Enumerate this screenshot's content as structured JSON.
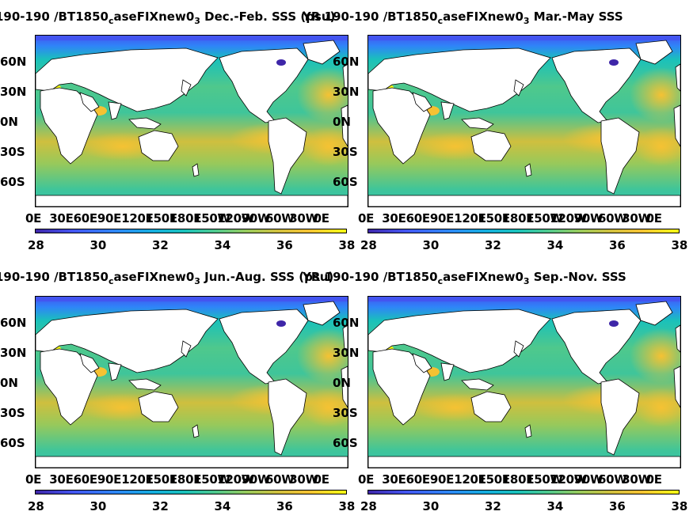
{
  "colors": {
    "cmap": [
      "#3e26a8",
      "#4355f0",
      "#2f84f8",
      "#14aedd",
      "#1ac1ba",
      "#4fc88c",
      "#97c95b",
      "#cfbf3e",
      "#f5c233",
      "#f9fb15"
    ],
    "land": "#ffffff"
  },
  "panels": [
    {
      "title_a": "190-190 /BT1850",
      "title_sub1": "c",
      "title_b": "aseFIXnew0",
      "title_sub2": "3",
      "title_c": " Dec.-Feb. SSS (psu)"
    },
    {
      "title_a": "YR 190-190 /BT1850",
      "title_sub1": "c",
      "title_b": "aseFIXnew0",
      "title_sub2": "3",
      "title_c": " Mar.-May SSS"
    },
    {
      "title_a": "190-190 /BT1850",
      "title_sub1": "c",
      "title_b": "aseFIXnew0",
      "title_sub2": "3",
      "title_c": " Jun.-Aug. SSS (psu)"
    },
    {
      "title_a": "YR 190-190 /BT1850",
      "title_sub1": "c",
      "title_b": "aseFIXnew0",
      "title_sub2": "3",
      "title_c": " Sep.-Nov. SSS"
    }
  ],
  "lat_labels": [
    "60N",
    "30N",
    "0N",
    "30S",
    "60S"
  ],
  "lon_labels": [
    "0E",
    "30E",
    "60E",
    "90E",
    "120E",
    "150E",
    "180E",
    "150W",
    "120W",
    "90W",
    "60W",
    "30W",
    "0E"
  ],
  "colorbar_ticks": [
    "28",
    "30",
    "32",
    "34",
    "36",
    "38"
  ]
}
